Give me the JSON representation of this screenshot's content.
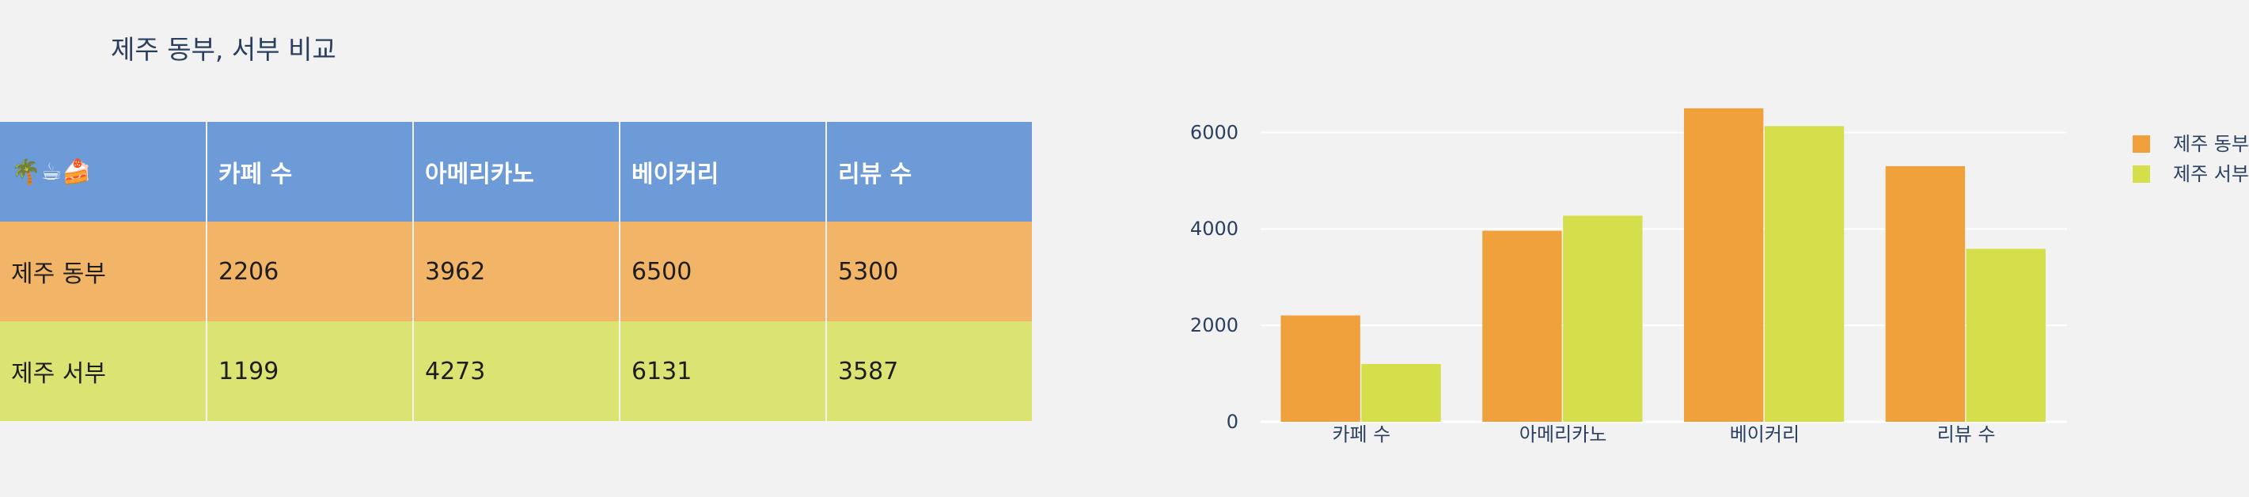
{
  "title": "제주 동부, 서부 비교",
  "table": {
    "headers": [
      "🌴☕🍰",
      "카페 수",
      "아메리카노",
      "베이커리",
      "리뷰 수"
    ],
    "rows": [
      {
        "name": "제주 동부",
        "cells": [
          "2206",
          "3962",
          "6500",
          "5300"
        ]
      },
      {
        "name": "제주 서부",
        "cells": [
          "1199",
          "4273",
          "6131",
          "3587"
        ]
      }
    ],
    "colors": {
      "header": "#6c9bd8",
      "row_east": "#f2b568",
      "row_west": "#dbe473"
    }
  },
  "chart_data": {
    "type": "bar",
    "categories": [
      "카페 수",
      "아메리카노",
      "베이커리",
      "리뷰 수"
    ],
    "series": [
      {
        "name": "제주 동부",
        "values": [
          2206,
          3962,
          6500,
          5300
        ],
        "color": "#f1a13b"
      },
      {
        "name": "제주 서부",
        "values": [
          1199,
          4273,
          6131,
          3587
        ],
        "color": "#d4df4b"
      }
    ],
    "yticks": [
      0,
      2000,
      4000,
      6000
    ],
    "ylim": [
      0,
      6842
    ],
    "grid": true,
    "legend_position": "top-right"
  }
}
